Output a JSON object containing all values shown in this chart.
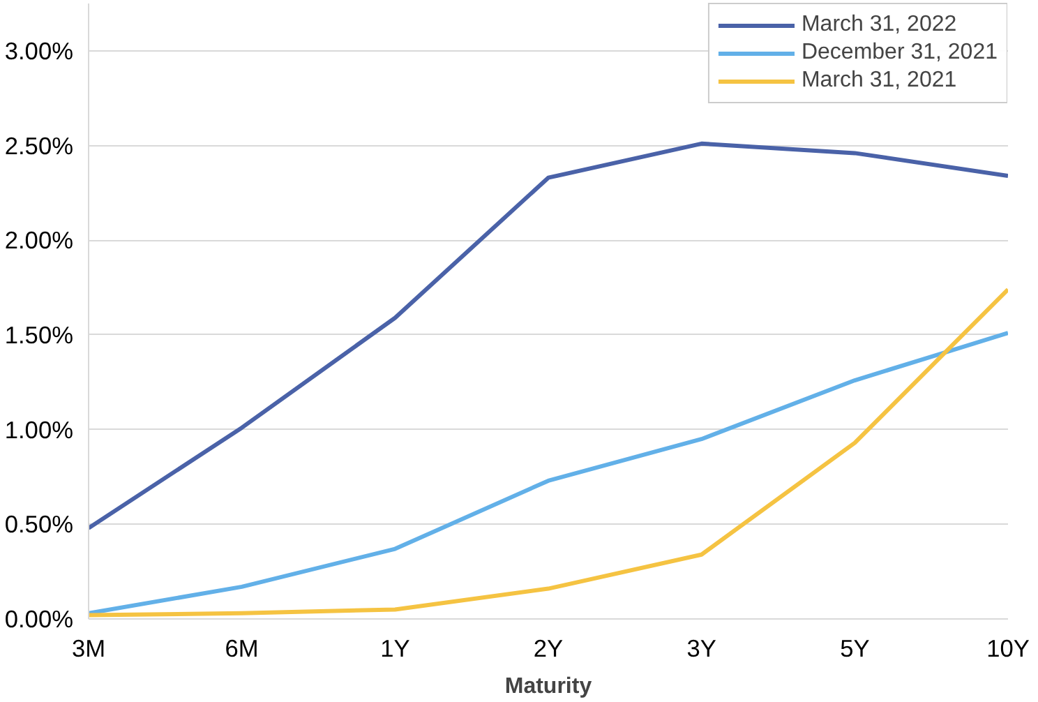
{
  "chart_data": {
    "type": "line",
    "xlabel": "Maturity",
    "categories": [
      "3M",
      "6M",
      "1Y",
      "2Y",
      "3Y",
      "5Y",
      "10Y"
    ],
    "ylim": [
      0,
      3.25
    ],
    "yticks": [
      {
        "value": 0,
        "label": "0.00%"
      },
      {
        "value": 0.5,
        "label": "0.50%"
      },
      {
        "value": 1,
        "label": "1.00%"
      },
      {
        "value": 1.5,
        "label": "1.50%"
      },
      {
        "value": 2,
        "label": "2.00%"
      },
      {
        "value": 2.5,
        "label": "2.50%"
      },
      {
        "value": 3,
        "label": "3.00%"
      }
    ],
    "grid": "y",
    "legend": "top right",
    "marker": "none",
    "line_style": "solid",
    "series": [
      {
        "name": "March 31, 2022",
        "color": "#4a62a8",
        "values": [
          0.48,
          1.01,
          1.59,
          2.33,
          2.51,
          2.46,
          2.34
        ]
      },
      {
        "name": "December 31, 2021",
        "color": "#62b0e8",
        "values": [
          0.03,
          0.17,
          0.37,
          0.73,
          0.95,
          1.26,
          1.51
        ]
      },
      {
        "name": "March 31, 2021",
        "color": "#f5c342",
        "values": [
          0.02,
          0.03,
          0.05,
          0.16,
          0.34,
          0.93,
          1.74
        ]
      }
    ]
  }
}
